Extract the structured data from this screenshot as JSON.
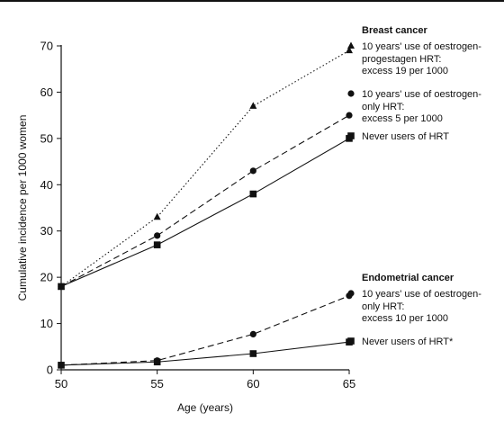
{
  "chart_data": {
    "type": "line",
    "x": [
      50,
      55,
      60,
      65
    ],
    "xlabel": "Age (years)",
    "ylabel": "Cumulative incidence per 1000 women",
    "xlim": [
      50,
      65
    ],
    "ylim": [
      0,
      70
    ],
    "x_ticks": [
      "50",
      "55",
      "60",
      "65"
    ],
    "y_ticks": [
      "0",
      "10",
      "20",
      "30",
      "40",
      "50",
      "60",
      "70"
    ],
    "grid": false,
    "groups": [
      {
        "heading": "Breast cancer",
        "series": [
          {
            "values": [
              18,
              33,
              57,
              69
            ],
            "line_style": "dotted",
            "marker": "triangle",
            "label_lines": [
              "10 years' use of oestrogen-",
              "progestagen HRT:",
              "excess 19 per 1000"
            ]
          },
          {
            "values": [
              18,
              29,
              43,
              55
            ],
            "line_style": "dashed",
            "marker": "circle",
            "label_lines": [
              "10 years' use of oestrogen-",
              "only HRT:",
              "excess 5 per 1000"
            ]
          },
          {
            "values": [
              18,
              27,
              38,
              50
            ],
            "line_style": "solid",
            "marker": "square",
            "label_lines": [
              "Never users of HRT"
            ]
          }
        ]
      },
      {
        "heading": "Endometrial cancer",
        "series": [
          {
            "values": [
              1,
              2,
              7.7,
              16
            ],
            "line_style": "dashed",
            "marker": "circle",
            "label_lines": [
              "10 years' use of oestrogen-",
              "only HRT:",
              "excess 10 per 1000"
            ]
          },
          {
            "values": [
              1,
              1.7,
              3.5,
              6
            ],
            "line_style": "solid",
            "marker": "square",
            "label_lines": [
              "Never users of HRT*"
            ]
          }
        ]
      }
    ],
    "colors": {
      "line": "#111111",
      "text": "#111111"
    }
  }
}
